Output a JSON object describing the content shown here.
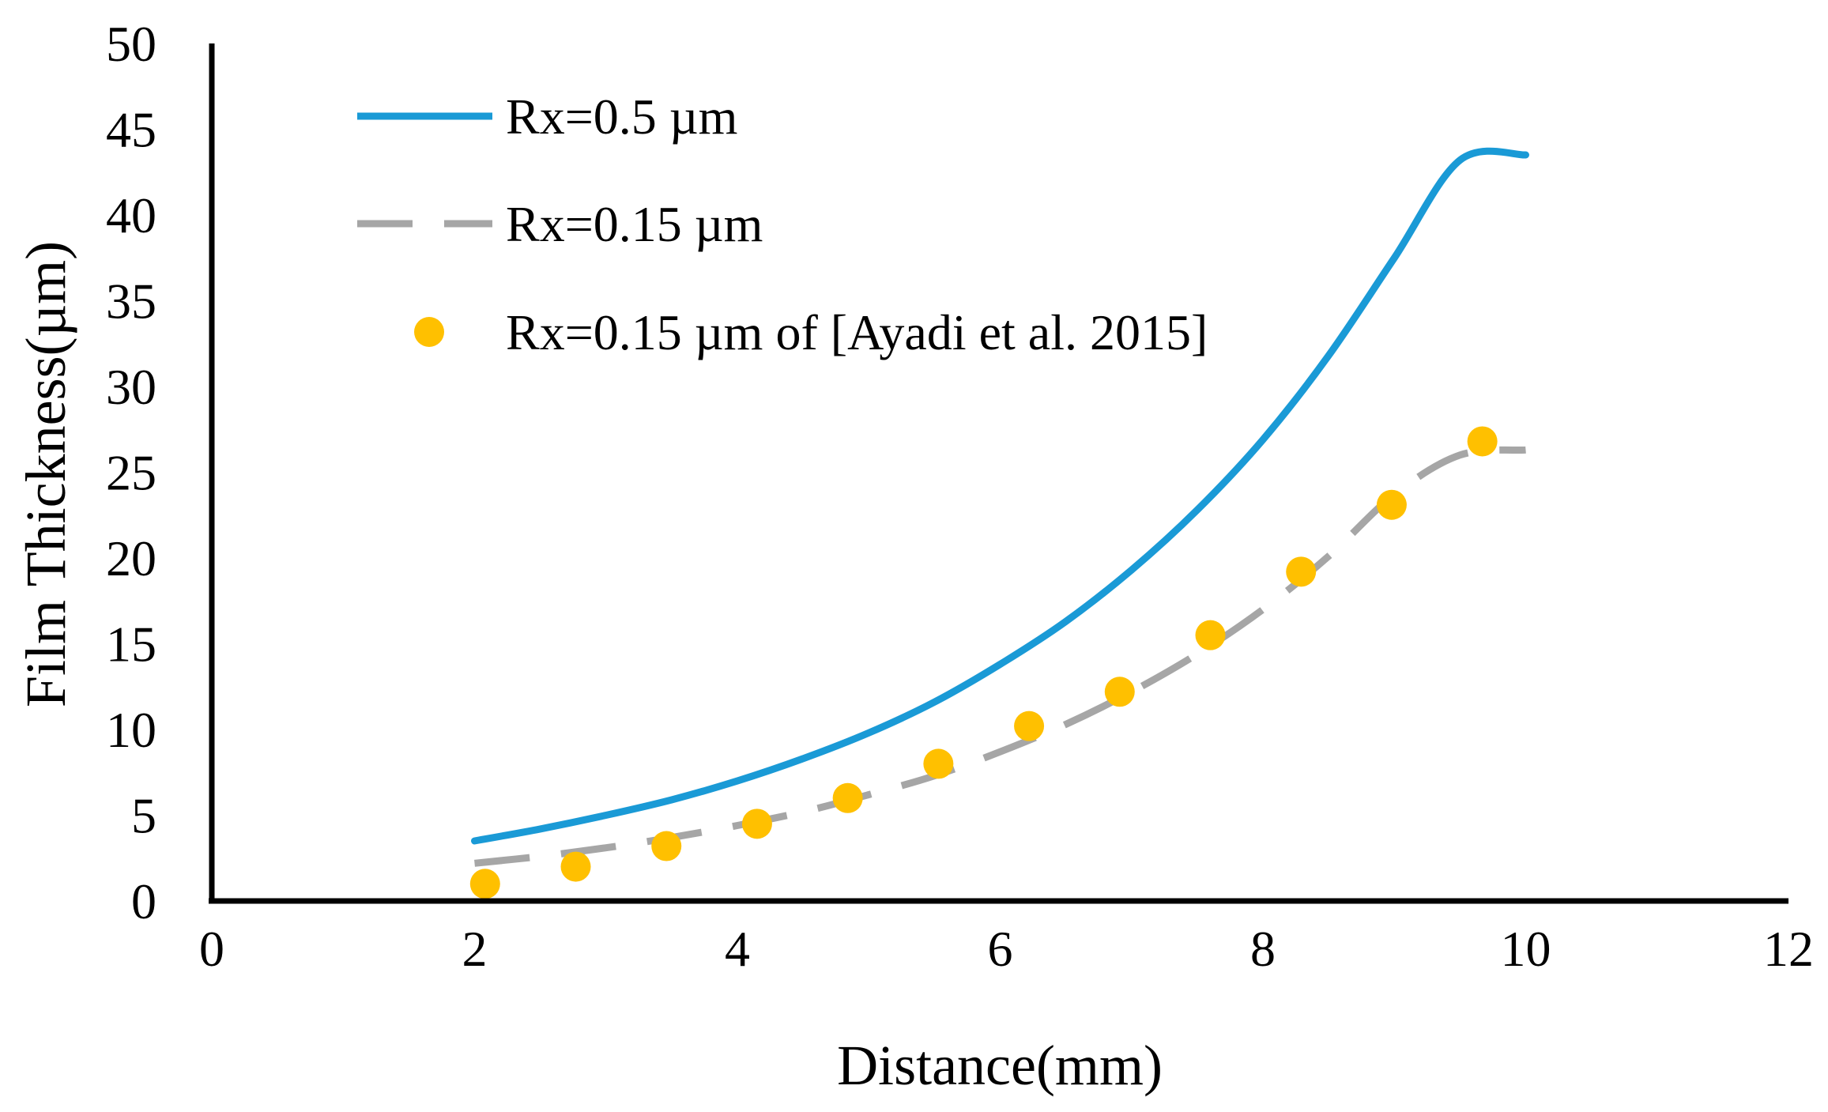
{
  "chart_data": {
    "type": "line",
    "title": "",
    "xlabel": "Distance(mm)",
    "ylabel": "Film Thickness(µm)",
    "xlim": [
      0,
      12
    ],
    "ylim": [
      0,
      50
    ],
    "xticks": [
      0,
      2,
      4,
      6,
      8,
      10,
      12
    ],
    "yticks": [
      0,
      5,
      10,
      15,
      20,
      25,
      30,
      35,
      40,
      45,
      50
    ],
    "grid": false,
    "legend_position": "top-left",
    "series": [
      {
        "name": "Rx=0.5 µm",
        "style": "solid-line",
        "color": "#1a9ad6",
        "x": [
          2.0,
          2.5,
          3.0,
          3.5,
          4.0,
          4.5,
          5.0,
          5.5,
          6.0,
          6.5,
          7.0,
          7.5,
          8.0,
          8.5,
          9.0,
          9.5,
          10.0
        ],
        "y": [
          3.5,
          4.2,
          5.0,
          5.9,
          7.0,
          8.3,
          9.8,
          11.6,
          13.8,
          16.3,
          19.3,
          22.8,
          26.9,
          31.8,
          37.5,
          43.2,
          43.5
        ]
      },
      {
        "name": "Rx=0.15 µm",
        "style": "dashed-line",
        "color": "#a6a6a6",
        "x": [
          2.0,
          2.5,
          3.0,
          3.5,
          4.0,
          4.5,
          5.0,
          5.5,
          6.0,
          6.5,
          7.0,
          7.5,
          8.0,
          8.5,
          9.0,
          9.5,
          10.0
        ],
        "y": [
          2.2,
          2.6,
          3.1,
          3.7,
          4.4,
          5.2,
          6.2,
          7.3,
          8.7,
          10.3,
          12.2,
          14.4,
          17.0,
          20.1,
          23.7,
          26.0,
          26.3
        ]
      },
      {
        "name": "Rx=0.15 µm of [Ayadi et al. 2015]",
        "style": "markers",
        "color": "#ffc000",
        "x": [
          2.08,
          2.77,
          3.46,
          4.15,
          4.84,
          5.53,
          6.22,
          6.91,
          7.6,
          8.29,
          8.98,
          9.67
        ],
        "y": [
          1.0,
          2.0,
          3.2,
          4.5,
          6.0,
          8.0,
          10.2,
          12.2,
          15.5,
          19.2,
          23.1,
          26.8
        ]
      }
    ]
  }
}
